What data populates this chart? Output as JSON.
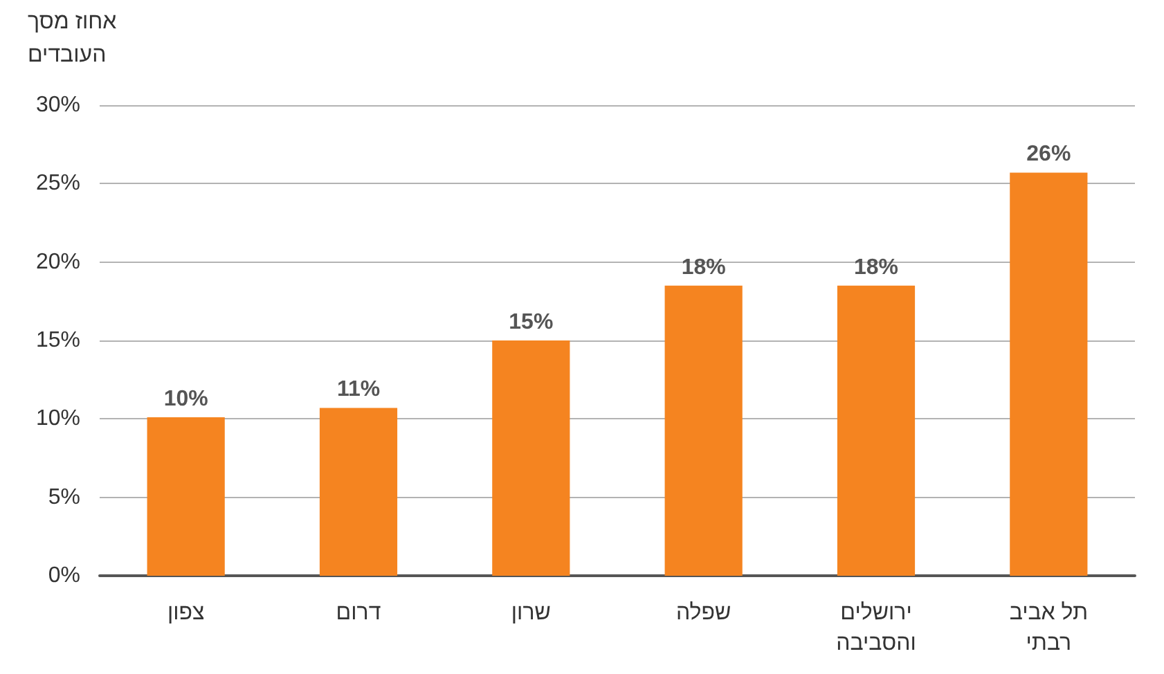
{
  "chart_data": {
    "type": "bar",
    "ylabel": "אחוז מסך העובדים",
    "categories": [
      "צפון",
      "דרום",
      "שרון",
      "שפלה",
      "ירושלים והסביבה",
      "תל אביב רבתי"
    ],
    "values": [
      10.1,
      10.7,
      15,
      18.5,
      18.5,
      25.7
    ],
    "value_labels": [
      "10%",
      "11%",
      "15%",
      "18%",
      "18%",
      "26%"
    ],
    "color": "#f58420",
    "ylim": [
      0,
      30
    ],
    "yticks": [
      {
        "value": 0,
        "label": "0%"
      },
      {
        "value": 5,
        "label": "5%"
      },
      {
        "value": 10,
        "label": "10%"
      },
      {
        "value": 15,
        "label": "15%"
      },
      {
        "value": 20,
        "label": "20%"
      },
      {
        "value": 25,
        "label": "25%"
      },
      {
        "value": 30,
        "label": "30%"
      }
    ],
    "grid": "y"
  }
}
